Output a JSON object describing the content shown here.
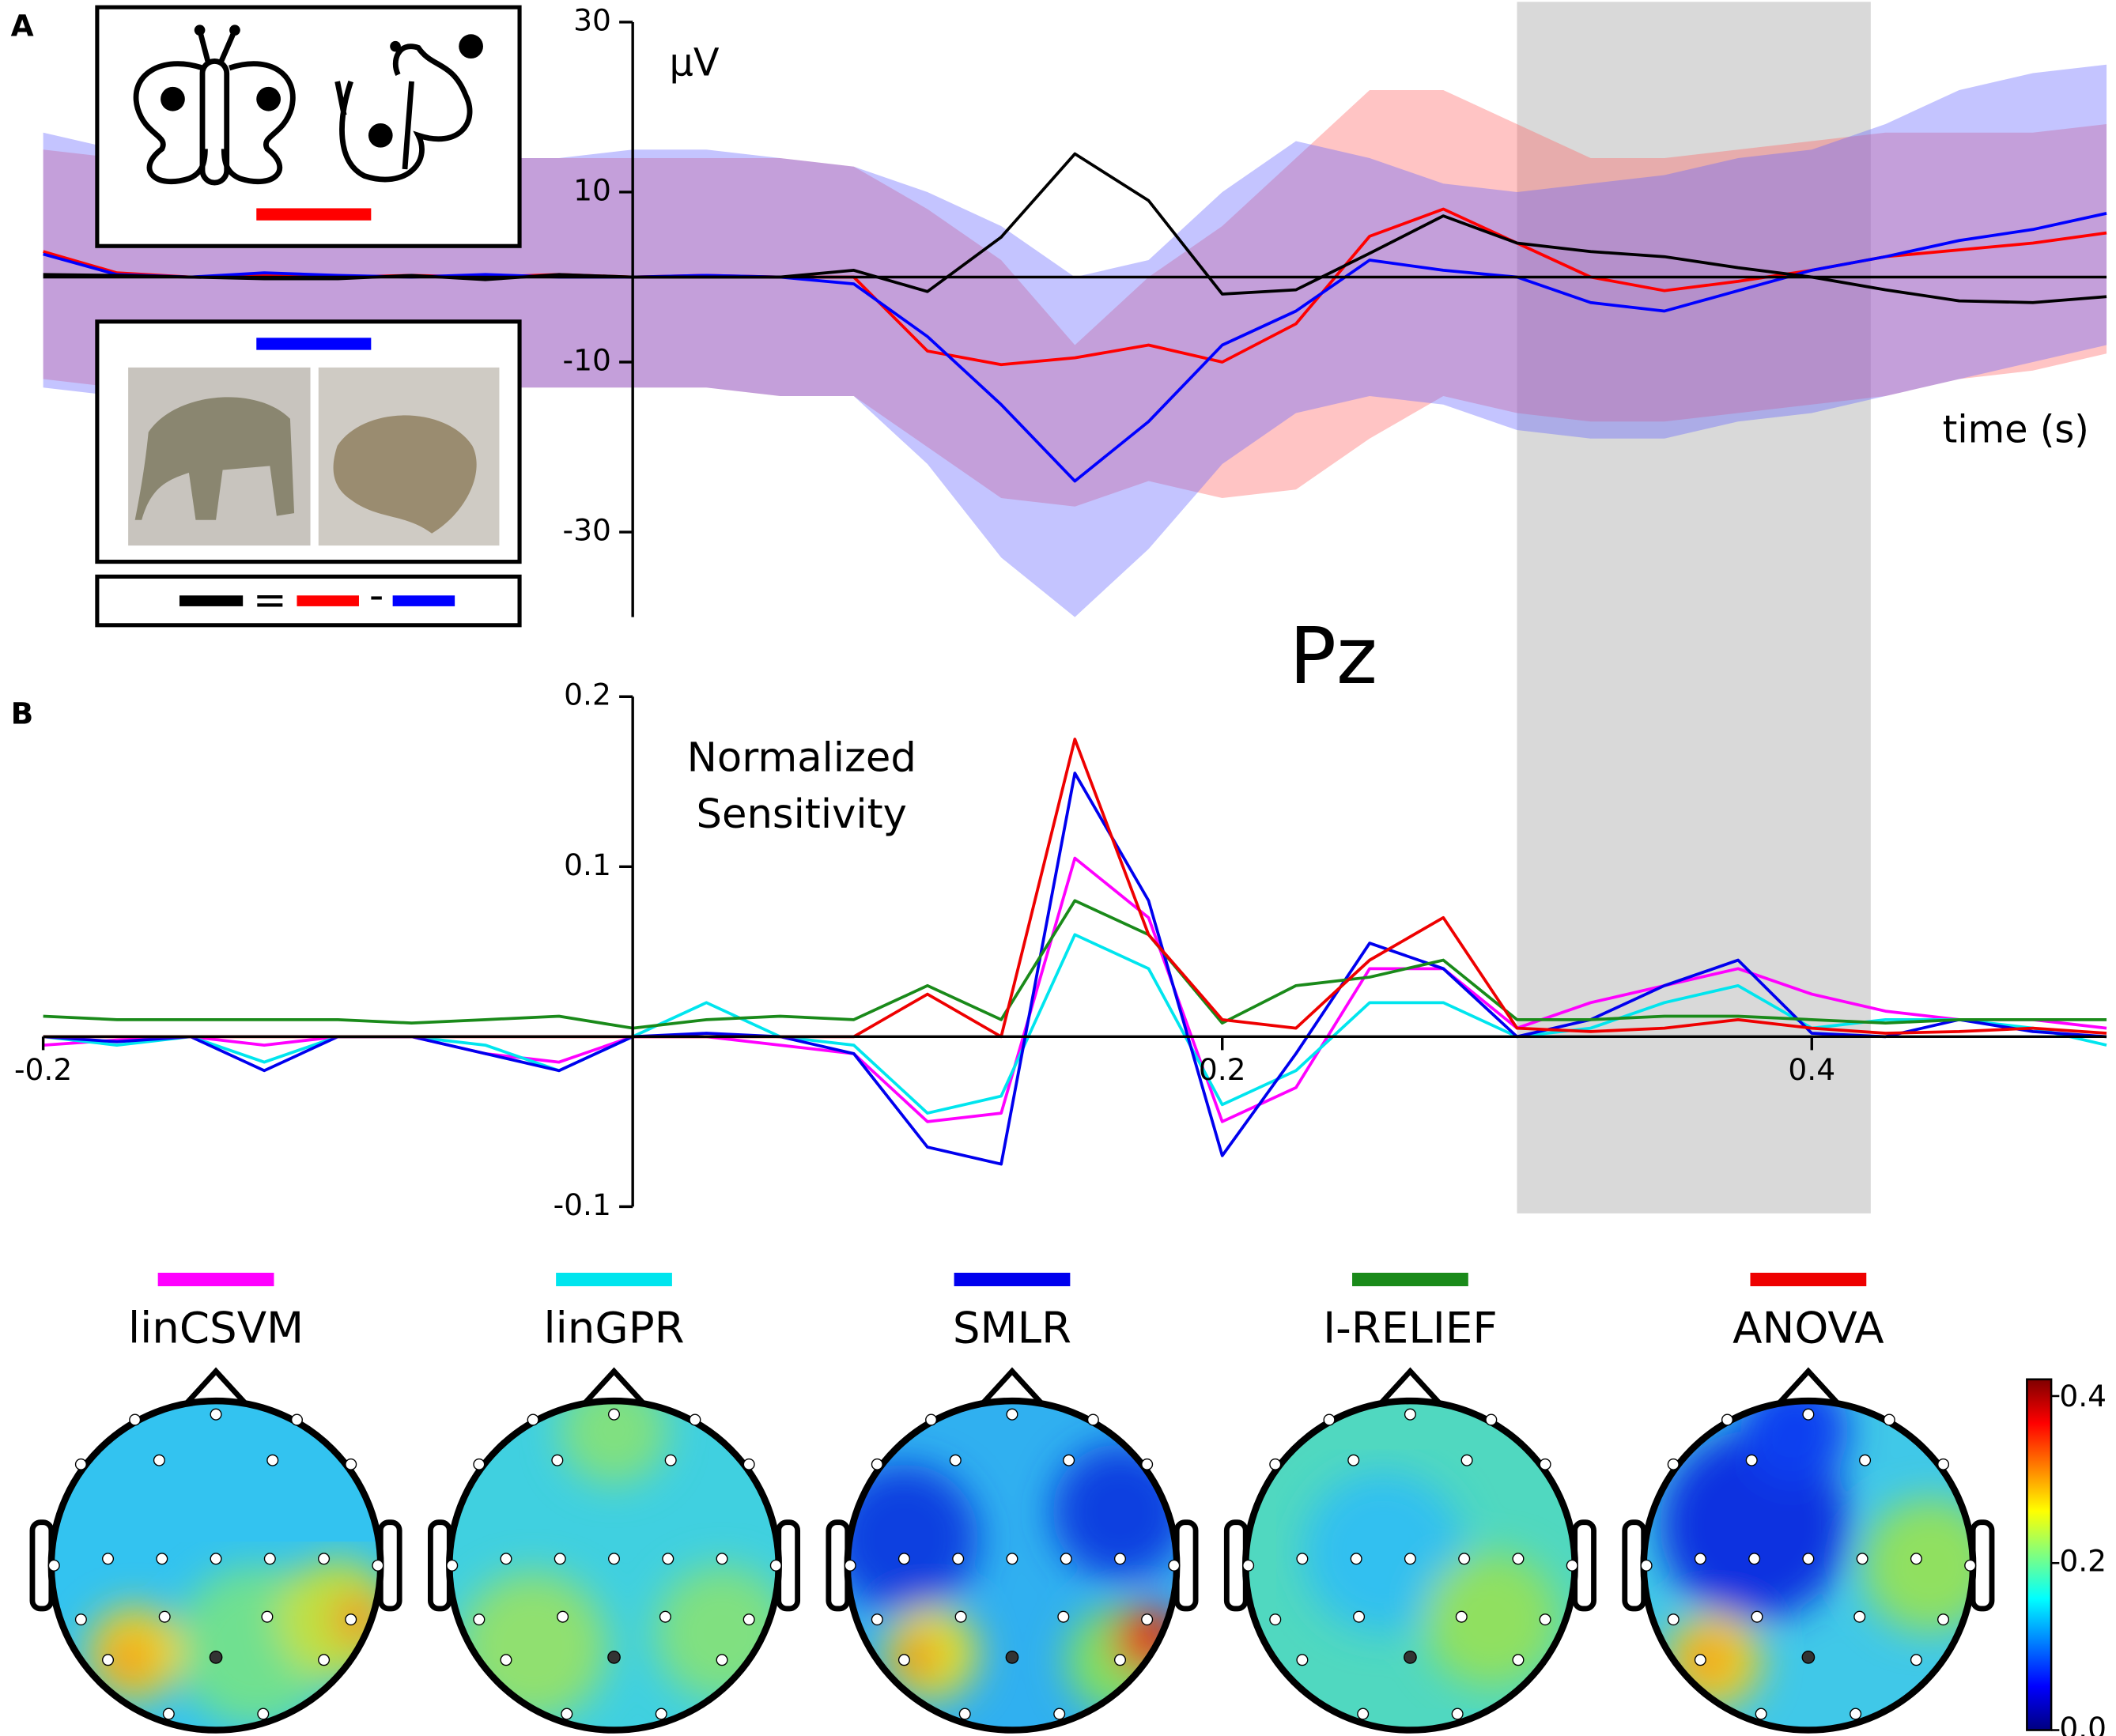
{
  "chart_data": [
    {
      "type": "line",
      "panel_label": "A",
      "ylabel": "µV",
      "xlabel": "time (s)",
      "x": [
        -0.2,
        -0.175,
        -0.15,
        -0.125,
        -0.1,
        -0.075,
        -0.05,
        -0.025,
        0,
        0.025,
        0.05,
        0.075,
        0.1,
        0.125,
        0.15,
        0.175,
        0.2,
        0.225,
        0.25,
        0.275,
        0.3,
        0.325,
        0.35,
        0.375,
        0.4,
        0.425,
        0.45,
        0.475,
        0.5
      ],
      "xlim": [
        -0.2,
        0.5
      ],
      "ylim": [
        -40,
        30
      ],
      "yticks": [
        -30,
        -10,
        10,
        30
      ],
      "highlight": [
        0.3,
        0.42
      ],
      "highlight_color": "#d9d9d9",
      "series": [
        {
          "color": "#ff0000",
          "band_color": "#ff6464",
          "values": [
            3,
            0.5,
            0,
            0.3,
            0,
            0.2,
            0,
            0.3,
            0,
            0.2,
            0,
            0,
            -8.7,
            -10.3,
            -9.5,
            -8,
            -10,
            -5.5,
            4.8,
            8,
            4,
            0,
            -1.6,
            -0.5,
            0.8,
            2.4,
            3.2,
            4,
            5.2
          ],
          "band_upper": [
            15,
            14,
            14,
            14,
            14,
            14,
            14,
            14,
            14,
            14,
            14,
            13,
            8,
            2,
            -8,
            0,
            6,
            14,
            22,
            22,
            18,
            14,
            14,
            15,
            16,
            17,
            17,
            17,
            18
          ],
          "band_lower": [
            -12,
            -13,
            -13,
            -13,
            -13,
            -13,
            -13,
            -13,
            -13,
            -13,
            -14,
            -14,
            -20,
            -26,
            -27,
            -24,
            -26,
            -25,
            -19,
            -14,
            -16,
            -17,
            -17,
            -16,
            -15,
            -14,
            -12,
            -11,
            -9
          ]
        },
        {
          "color": "#0000ff",
          "band_color": "#6464ff",
          "values": [
            2.7,
            0.3,
            0,
            0.5,
            0.2,
            0,
            0.3,
            0,
            0,
            0.2,
            0,
            -0.8,
            -7,
            -15,
            -24,
            -17,
            -8,
            -4,
            2,
            0.8,
            0,
            -3,
            -4,
            -1.6,
            0.8,
            2.4,
            4.3,
            5.6,
            7.5
          ],
          "band_upper": [
            17,
            15,
            15,
            14,
            14,
            14,
            14,
            14,
            15,
            15,
            14,
            13,
            10,
            6,
            0,
            2,
            10,
            16,
            14,
            11,
            10,
            11,
            12,
            14,
            15,
            18,
            22,
            24,
            25
          ],
          "band_lower": [
            -13,
            -14,
            -14,
            -13,
            -13,
            -13,
            -13,
            -13,
            -13,
            -13,
            -14,
            -14,
            -22,
            -33,
            -40,
            -32,
            -22,
            -16,
            -14,
            -15,
            -18,
            -19,
            -19,
            -17,
            -16,
            -14,
            -12,
            -10,
            -8
          ]
        },
        {
          "color": "#000000",
          "values": [
            0.3,
            0.2,
            0,
            -0.2,
            -0.2,
            0.2,
            -0.3,
            0.3,
            0,
            0,
            0,
            0.8,
            -1.7,
            4.7,
            14.5,
            9,
            -2,
            -1.5,
            2.8,
            7.2,
            4,
            3,
            2.4,
            1.1,
            0,
            -1.5,
            -2.8,
            -3,
            -2.3
          ]
        }
      ]
    },
    {
      "type": "line",
      "panel_label": "B",
      "title": "Pz",
      "ylabel": [
        "Normalized",
        "Sensitivity"
      ],
      "x": [
        -0.2,
        -0.175,
        -0.15,
        -0.125,
        -0.1,
        -0.075,
        -0.05,
        -0.025,
        0,
        0.025,
        0.05,
        0.075,
        0.1,
        0.125,
        0.15,
        0.175,
        0.2,
        0.225,
        0.25,
        0.275,
        0.3,
        0.325,
        0.35,
        0.375,
        0.4,
        0.425,
        0.45,
        0.475,
        0.5
      ],
      "xlim": [
        -0.2,
        0.5
      ],
      "ylim": [
        -0.1,
        0.2
      ],
      "yticks": [
        -0.1,
        0.1,
        0.2
      ],
      "xticks": [
        -0.2,
        0.2,
        0.4
      ],
      "series": [
        {
          "name": "linCSVM",
          "color": "#ff00ff",
          "values": [
            -0.005,
            -0.002,
            0,
            -0.005,
            0,
            0,
            -0.01,
            -0.015,
            0,
            0,
            -0.005,
            -0.01,
            -0.05,
            -0.045,
            0.105,
            0.07,
            -0.05,
            -0.03,
            0.04,
            0.04,
            0.005,
            0.02,
            0.03,
            0.04,
            0.025,
            0.015,
            0.01,
            0.01,
            0.005
          ]
        },
        {
          "name": "linGPR",
          "color": "#00e5ee",
          "values": [
            0,
            -0.005,
            0,
            -0.015,
            0,
            0,
            -0.005,
            -0.02,
            0,
            0.02,
            0,
            -0.005,
            -0.045,
            -0.035,
            0.06,
            0.04,
            -0.04,
            -0.02,
            0.02,
            0.02,
            0,
            0.005,
            0.02,
            0.03,
            0.005,
            0.01,
            0.01,
            0.005,
            -0.005
          ]
        },
        {
          "name": "SMLR",
          "color": "#0000ee",
          "values": [
            0,
            -0.003,
            0,
            -0.02,
            0,
            0,
            -0.01,
            -0.02,
            0,
            0.002,
            0,
            -0.01,
            -0.065,
            -0.075,
            0.155,
            0.08,
            -0.07,
            -0.01,
            0.055,
            0.04,
            0,
            0.01,
            0.03,
            0.045,
            0.002,
            0,
            0.01,
            0.003,
            0
          ]
        },
        {
          "name": "I-RELIEF",
          "color": "#1a8a1a",
          "values": [
            0.012,
            0.01,
            0.01,
            0.01,
            0.01,
            0.008,
            0.01,
            0.012,
            0.005,
            0.01,
            0.012,
            0.01,
            0.03,
            0.01,
            0.08,
            0.06,
            0.008,
            0.03,
            0.035,
            0.045,
            0.01,
            0.01,
            0.012,
            0.012,
            0.01,
            0.008,
            0.01,
            0.01,
            0.01
          ]
        },
        {
          "name": "ANOVA",
          "color": "#ee0000",
          "values": [
            0,
            0,
            0,
            0,
            0,
            0,
            0,
            0,
            0,
            0,
            0,
            0,
            0.025,
            0,
            0.175,
            0.06,
            0.01,
            0.005,
            0.045,
            0.07,
            0.005,
            0.003,
            0.005,
            0.01,
            0.005,
            0.002,
            0.003,
            0.005,
            0.002
          ]
        }
      ]
    }
  ],
  "inset": {
    "symbols": [
      "=",
      "-"
    ]
  },
  "topomaps": {
    "colorbar": {
      "lim": [
        0,
        0.42
      ],
      "ticks": [
        {
          "value": 0,
          "label": "0.0"
        },
        0.2,
        0.4
      ]
    }
  }
}
